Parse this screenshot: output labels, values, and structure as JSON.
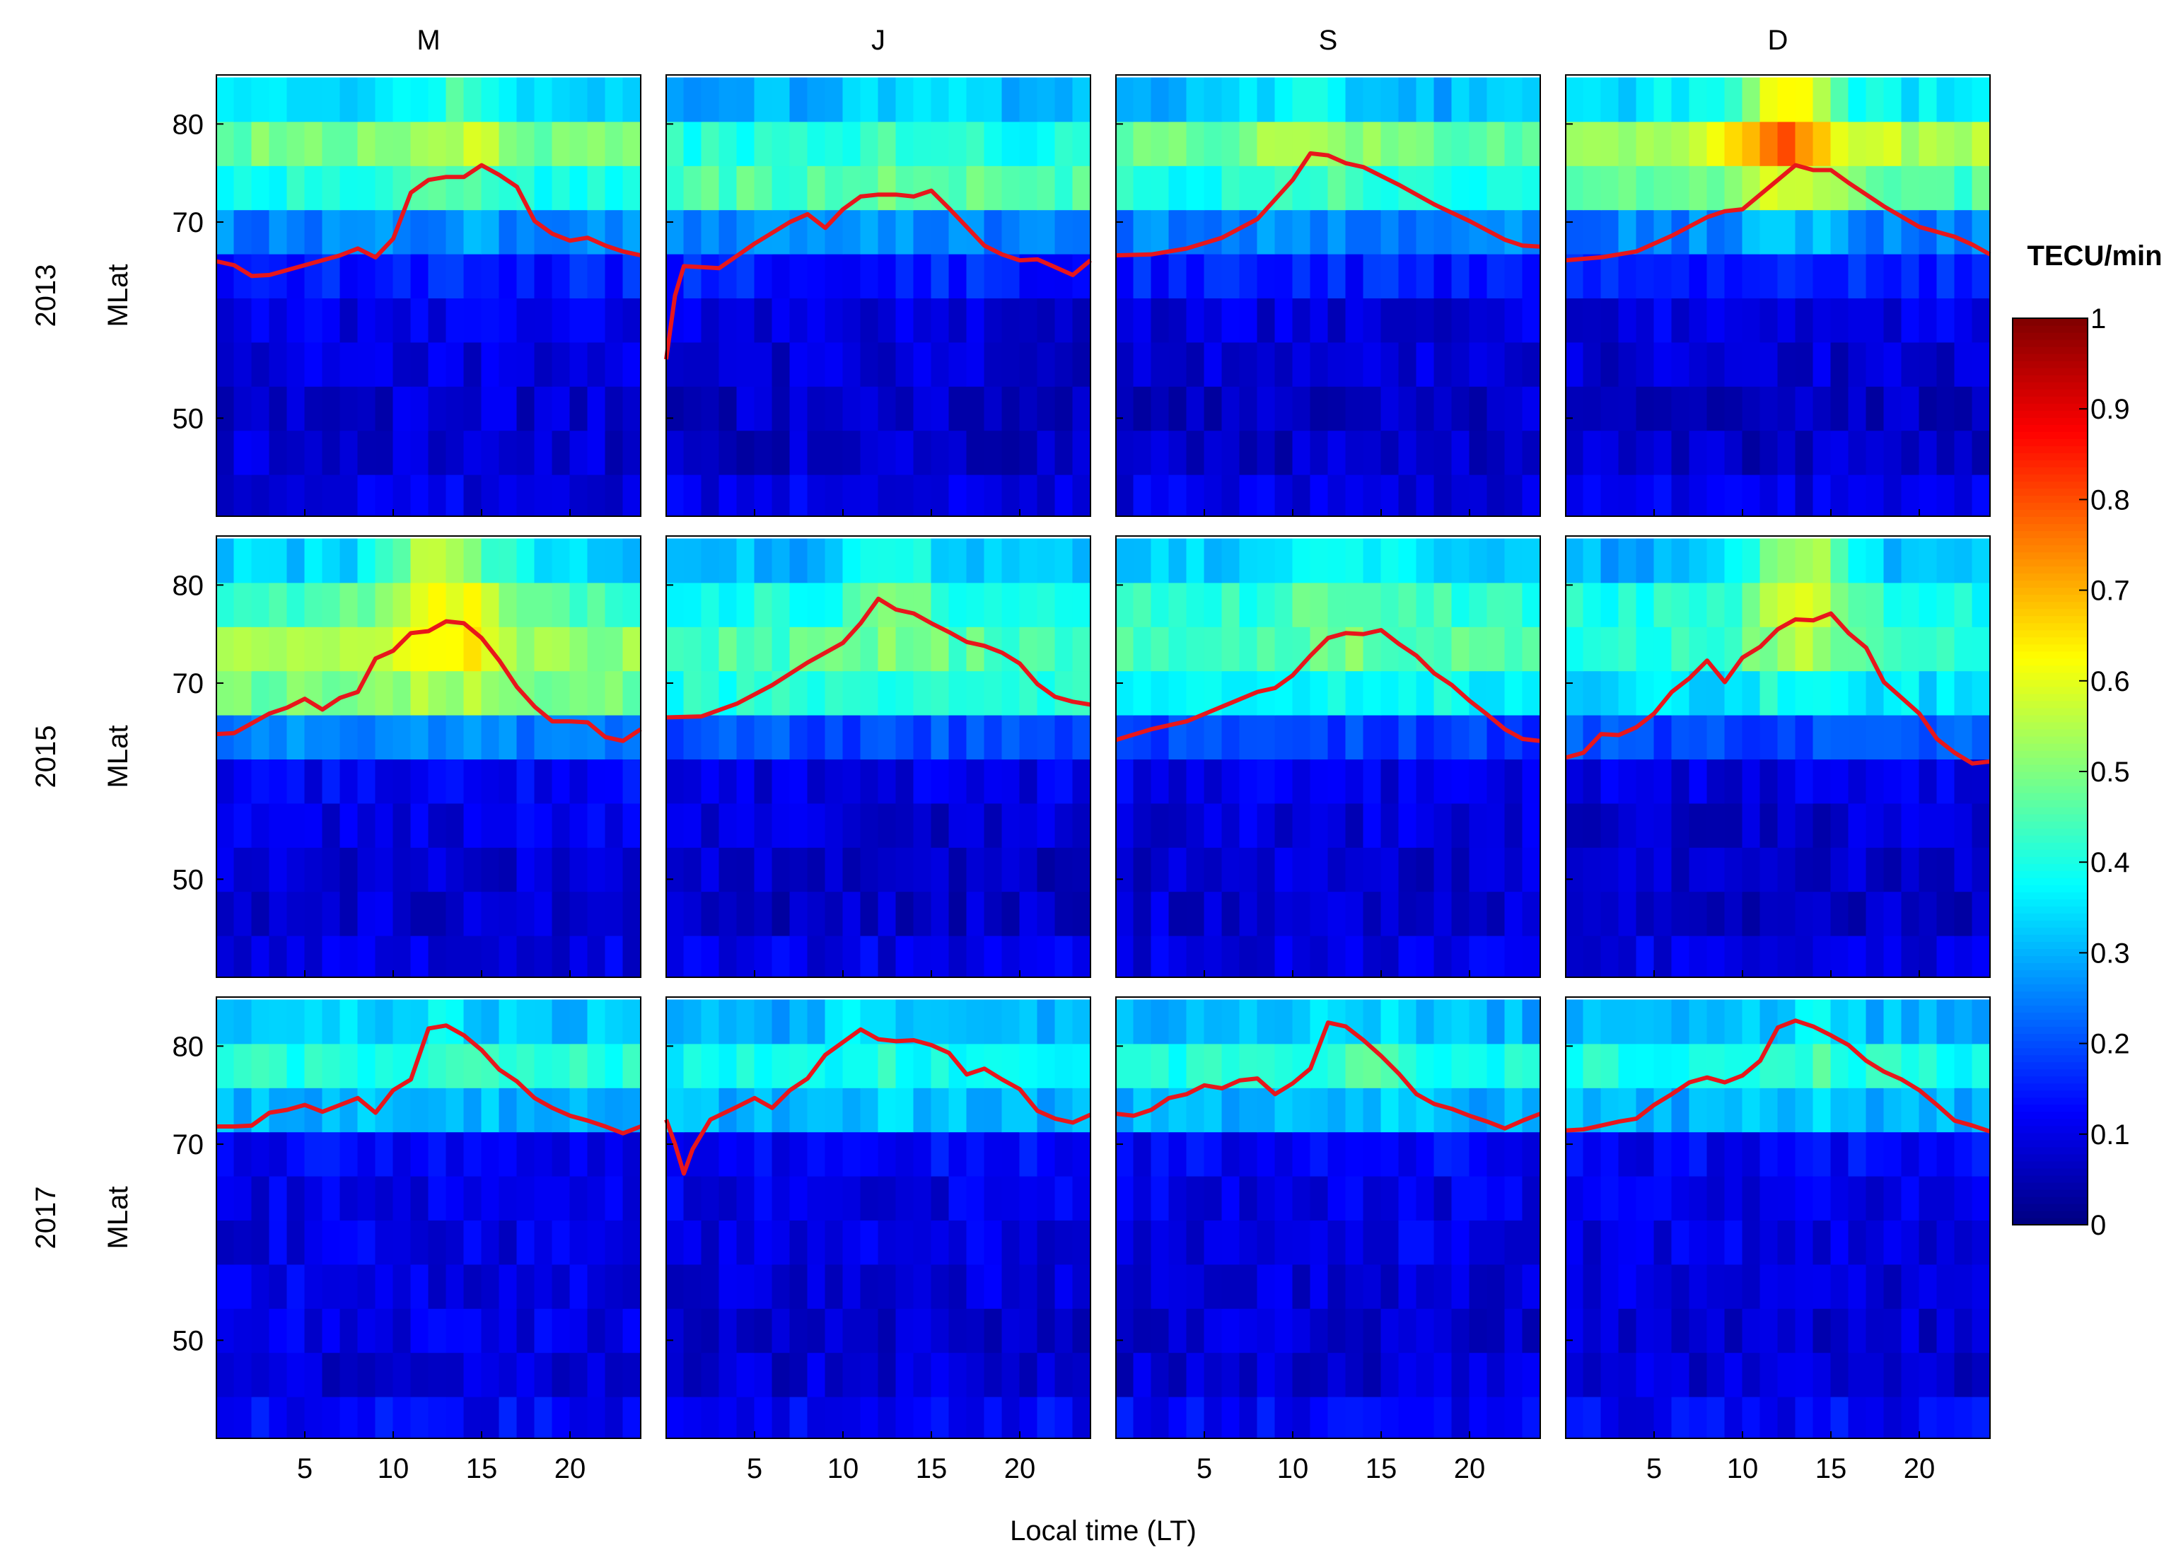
{
  "chart_data": {
    "type": "heatmap",
    "columns": [
      "M",
      "J",
      "S",
      "D"
    ],
    "rows": [
      "2013",
      "2015",
      "2017"
    ],
    "xlabel": "Local time (LT)",
    "ylabel": "MLat",
    "xlim": [
      0,
      24
    ],
    "ylim": [
      40,
      85
    ],
    "x_ticks": [
      5,
      10,
      15,
      20
    ],
    "y_ticks": [
      50,
      70,
      80
    ],
    "lat_bands": [
      42,
      46.5,
      51,
      55.5,
      60,
      64.5,
      69,
      73.5,
      78,
      82.5
    ],
    "lt_bins": [
      0.5,
      1.5,
      2.5,
      3.5,
      4.5,
      5.5,
      6.5,
      7.5,
      8.5,
      9.5,
      10.5,
      11.5,
      12.5,
      13.5,
      14.5,
      15.5,
      16.5,
      17.5,
      18.5,
      19.5,
      20.5,
      21.5,
      22.5,
      23.5
    ],
    "colorbar": {
      "label": "TECU/min",
      "range": [
        0,
        1
      ],
      "ticks": [
        0,
        0.1,
        0.2,
        0.3,
        0.4,
        0.5,
        0.6,
        0.7,
        0.8,
        0.9,
        1
      ],
      "tick_labels": [
        "0",
        "0.1",
        "0.2",
        "0.3",
        "0.4",
        "0.5",
        "0.6",
        "0.7",
        "0.8",
        "0.9",
        "1"
      ],
      "colormap": "jet"
    },
    "panels": [
      {
        "row": "2013",
        "col": "M",
        "band_levels": [
          0.1,
          0.08,
          0.08,
          0.09,
          0.1,
          0.15,
          0.25,
          0.4,
          0.48,
          0.33
        ],
        "peak_lt": 14,
        "peak_boost": 0.1,
        "boundary": {
          "lt": [
            0,
            1,
            2,
            3,
            5,
            7,
            8,
            9,
            10,
            11,
            12,
            13,
            14,
            15,
            16,
            17,
            18,
            19,
            20,
            21,
            22,
            23,
            24
          ],
          "mlat": [
            66,
            65.6,
            64.5,
            64.6,
            65.6,
            66.6,
            67.3,
            66.4,
            68.3,
            73,
            74.3,
            74.6,
            74.6,
            75.8,
            74.8,
            73.6,
            70.1,
            68.8,
            68.1,
            68.4,
            67.6,
            67.0,
            66.6
          ]
        }
      },
      {
        "row": "2013",
        "col": "J",
        "band_levels": [
          0.1,
          0.07,
          0.07,
          0.08,
          0.09,
          0.15,
          0.25,
          0.45,
          0.4,
          0.3
        ],
        "peak_lt": 14,
        "peak_boost": 0.05,
        "boundary": {
          "lt": [
            0,
            0.5,
            1,
            3,
            5,
            7,
            8,
            9,
            10,
            11,
            12,
            13,
            14,
            15,
            16,
            17,
            18,
            19,
            20,
            21,
            22,
            23,
            24
          ],
          "mlat": [
            56,
            62.5,
            65.5,
            65.3,
            67.8,
            70,
            70.8,
            69.4,
            71.3,
            72.6,
            72.8,
            72.8,
            72.6,
            73.2,
            71.4,
            69.5,
            67.6,
            66.7,
            66.1,
            66.2,
            65.4,
            64.6,
            66.1
          ]
        }
      },
      {
        "row": "2013",
        "col": "S",
        "band_levels": [
          0.1,
          0.07,
          0.07,
          0.08,
          0.09,
          0.15,
          0.25,
          0.4,
          0.48,
          0.3
        ],
        "peak_lt": 11,
        "peak_boost": 0.1,
        "boundary": {
          "lt": [
            0,
            2,
            4,
            6,
            8,
            10,
            11,
            12,
            13,
            14,
            16,
            18,
            20,
            22,
            23,
            24
          ],
          "mlat": [
            66.6,
            66.7,
            67.3,
            68.4,
            70.3,
            74.3,
            77,
            76.8,
            76.0,
            75.6,
            73.8,
            71.8,
            70.1,
            68.2,
            67.6,
            67.5
          ]
        }
      },
      {
        "row": "2013",
        "col": "D",
        "band_levels": [
          0.1,
          0.07,
          0.07,
          0.08,
          0.1,
          0.15,
          0.25,
          0.45,
          0.55,
          0.35
        ],
        "peak_lt": 12.5,
        "peak_boost": 0.3,
        "boundary": {
          "lt": [
            0,
            2,
            4,
            6,
            8,
            9,
            10,
            11,
            12,
            13,
            14,
            15,
            16,
            18,
            20,
            22,
            23,
            24
          ],
          "mlat": [
            66.1,
            66.4,
            67.0,
            68.6,
            70.5,
            71.1,
            71.3,
            72.8,
            74.3,
            75.8,
            75.3,
            75.3,
            74.0,
            71.6,
            69.5,
            68.5,
            67.7,
            66.7
          ]
        }
      },
      {
        "row": "2015",
        "col": "M",
        "band_levels": [
          0.1,
          0.08,
          0.08,
          0.1,
          0.12,
          0.25,
          0.48,
          0.52,
          0.45,
          0.33
        ],
        "peak_lt": 13,
        "peak_boost": 0.25,
        "boundary": {
          "lt": [
            0,
            1,
            2,
            3,
            4,
            5,
            6,
            7,
            8,
            9,
            10,
            11,
            12,
            13,
            14,
            15,
            16,
            17,
            18,
            19,
            20,
            21,
            22,
            23,
            24
          ],
          "mlat": [
            64.8,
            64.9,
            65.9,
            66.9,
            67.5,
            68.4,
            67.3,
            68.5,
            69.1,
            72.5,
            73.3,
            75.1,
            75.3,
            76.3,
            76.1,
            74.6,
            72.3,
            69.6,
            67.6,
            66.1,
            66.1,
            66.0,
            64.5,
            64.1,
            65.3
          ]
        }
      },
      {
        "row": "2015",
        "col": "J",
        "band_levels": [
          0.1,
          0.07,
          0.07,
          0.08,
          0.1,
          0.2,
          0.4,
          0.45,
          0.4,
          0.3
        ],
        "peak_lt": 13,
        "peak_boost": 0.1,
        "boundary": {
          "lt": [
            0,
            2,
            4,
            6,
            8,
            10,
            11,
            12,
            13,
            14,
            15,
            16,
            17,
            18,
            19,
            20,
            21,
            22,
            23,
            24
          ],
          "mlat": [
            66.5,
            66.6,
            67.9,
            69.8,
            72.1,
            74.1,
            76.1,
            78.6,
            77.5,
            77.1,
            76.1,
            75.2,
            74.2,
            73.8,
            73.1,
            72.0,
            69.9,
            68.6,
            68.1,
            67.8
          ]
        }
      },
      {
        "row": "2015",
        "col": "S",
        "band_levels": [
          0.1,
          0.08,
          0.08,
          0.09,
          0.1,
          0.18,
          0.38,
          0.45,
          0.42,
          0.32
        ],
        "peak_lt": 13,
        "peak_boost": 0.08,
        "boundary": {
          "lt": [
            0,
            2,
            4,
            6,
            8,
            9,
            10,
            11,
            12,
            13,
            14,
            15,
            16,
            17,
            18,
            19,
            20,
            21,
            22,
            23,
            24
          ],
          "mlat": [
            64.2,
            65.3,
            66.1,
            67.6,
            69.1,
            69.5,
            70.8,
            72.8,
            74.6,
            75.1,
            75.0,
            75.4,
            74.0,
            72.8,
            71.0,
            69.8,
            68.2,
            66.8,
            65.3,
            64.3,
            64.1
          ]
        }
      },
      {
        "row": "2015",
        "col": "D",
        "band_levels": [
          0.1,
          0.07,
          0.07,
          0.08,
          0.1,
          0.2,
          0.35,
          0.42,
          0.4,
          0.3
        ],
        "peak_lt": 13.5,
        "peak_boost": 0.25,
        "boundary": {
          "lt": [
            0,
            1,
            2,
            3,
            4,
            5,
            6,
            7,
            8,
            9,
            10,
            11,
            12,
            13,
            14,
            15,
            16,
            17,
            18,
            19,
            20,
            21,
            22,
            23,
            24
          ],
          "mlat": [
            62.4,
            62.9,
            64.8,
            64.7,
            65.5,
            66.9,
            69.1,
            70.5,
            72.3,
            70.1,
            72.6,
            73.7,
            75.5,
            76.5,
            76.4,
            77.1,
            75.1,
            73.6,
            70.1,
            68.5,
            66.9,
            64.3,
            62.9,
            61.8,
            62.0
          ]
        }
      },
      {
        "row": "2017",
        "col": "M",
        "band_levels": [
          0.12,
          0.08,
          0.1,
          0.1,
          0.1,
          0.1,
          0.12,
          0.3,
          0.4,
          0.32
        ],
        "peak_lt": 12,
        "peak_boost": 0.05,
        "boundary": {
          "lt": [
            0,
            1,
            2,
            3,
            4,
            5,
            6,
            7,
            8,
            9,
            10,
            11,
            12,
            13,
            14,
            15,
            16,
            17,
            18,
            19,
            20,
            21,
            22,
            23,
            24
          ],
          "mlat": [
            71.8,
            71.8,
            71.9,
            73.2,
            73.5,
            74.0,
            73.3,
            74.0,
            74.7,
            73.2,
            75.5,
            76.6,
            81.8,
            82.1,
            81.1,
            79.6,
            77.6,
            76.4,
            74.7,
            73.7,
            72.9,
            72.4,
            71.8,
            71.1,
            71.8
          ]
        }
      },
      {
        "row": "2017",
        "col": "J",
        "band_levels": [
          0.12,
          0.08,
          0.08,
          0.09,
          0.1,
          0.1,
          0.12,
          0.3,
          0.38,
          0.3
        ],
        "peak_lt": 12,
        "peak_boost": 0.05,
        "boundary": {
          "lt": [
            0,
            0.5,
            1,
            1.5,
            2.5,
            4,
            5,
            6,
            7,
            8,
            9,
            10,
            11,
            12,
            13,
            14,
            15,
            16,
            17,
            18,
            19,
            20,
            21,
            22,
            23,
            24
          ],
          "mlat": [
            72.5,
            70,
            67,
            69.5,
            72.5,
            73.8,
            74.7,
            73.7,
            75.5,
            76.7,
            79.1,
            80.4,
            81.7,
            80.7,
            80.5,
            80.6,
            80.1,
            79.3,
            77.1,
            77.7,
            76.6,
            75.6,
            73.4,
            72.6,
            72.2,
            73.0
          ]
        }
      },
      {
        "row": "2017",
        "col": "S",
        "band_levels": [
          0.12,
          0.08,
          0.08,
          0.09,
          0.1,
          0.1,
          0.12,
          0.3,
          0.4,
          0.3
        ],
        "peak_lt": 14,
        "peak_boost": 0.05,
        "boundary": {
          "lt": [
            0,
            1,
            2,
            3,
            4,
            5,
            6,
            7,
            8,
            9,
            10,
            11,
            12,
            13,
            14,
            15,
            16,
            17,
            18,
            19,
            20,
            21,
            22,
            23,
            24
          ],
          "mlat": [
            73.1,
            72.9,
            73.5,
            74.7,
            75.1,
            76.0,
            75.7,
            76.5,
            76.7,
            75.1,
            76.2,
            77.7,
            82.4,
            82.0,
            80.6,
            79.0,
            77.2,
            75.1,
            74.1,
            73.6,
            72.9,
            72.3,
            71.6,
            72.4,
            73.1
          ]
        }
      },
      {
        "row": "2017",
        "col": "D",
        "band_levels": [
          0.12,
          0.08,
          0.08,
          0.09,
          0.1,
          0.1,
          0.12,
          0.3,
          0.4,
          0.3
        ],
        "peak_lt": 14,
        "peak_boost": 0.05,
        "boundary": {
          "lt": [
            0,
            1,
            2,
            3,
            4,
            5,
            6,
            7,
            8,
            9,
            10,
            11,
            12,
            13,
            14,
            15,
            16,
            17,
            18,
            19,
            20,
            21,
            22,
            23,
            24
          ],
          "mlat": [
            71.4,
            71.5,
            71.9,
            72.3,
            72.6,
            74.0,
            75.1,
            76.3,
            76.8,
            76.3,
            77.0,
            78.5,
            81.9,
            82.6,
            82.0,
            81.1,
            80.1,
            78.5,
            77.4,
            76.6,
            75.5,
            74.0,
            72.4,
            71.9,
            71.3
          ]
        }
      }
    ]
  }
}
